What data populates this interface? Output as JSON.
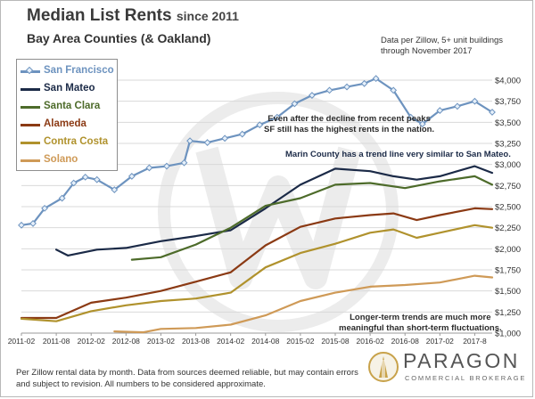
{
  "header": {
    "title_main": "Median List Rents",
    "title_since": "since 2011",
    "subtitle": "Bay Area Counties (& Oakland)",
    "source_line1": "Data per Zillow, 5+ unit buildings",
    "source_line2": "through November 2017"
  },
  "footer": {
    "line1": "Per Zillow rental data by month. Data from sources deemed reliable, but may contain errors",
    "line2": "and subject to revision. All numbers to be considered approximate."
  },
  "logo": {
    "brand": "PARAGON",
    "tagline": "COMMERCIAL BROKERAGE"
  },
  "chart_data": {
    "type": "line",
    "title": "Median List Rents since 2011",
    "subtitle": "Bay Area Counties (& Oakland)",
    "ylim": [
      1000,
      4000
    ],
    "y_ticks": [
      1000,
      1250,
      1500,
      1750,
      2000,
      2250,
      2500,
      2750,
      3000,
      3250,
      3500,
      3750,
      4000
    ],
    "y_tick_labels": [
      "$1,000",
      "$1,250",
      "$1,500",
      "$1,750",
      "$2,000",
      "$2,250",
      "$2,500",
      "$2,750",
      "$3,000",
      "$3,250",
      "$3,500",
      "$3,750",
      "$4,000"
    ],
    "x_ticks": [
      "2011-02",
      "2011-08",
      "2012-02",
      "2012-08",
      "2013-02",
      "2013-08",
      "2014-02",
      "2014-08",
      "2015-02",
      "2015-08",
      "2016-02",
      "2016-08",
      "2017-02",
      "2017-8"
    ],
    "grid": "horizontal",
    "legend_placement": "top-left",
    "series": [
      {
        "name": "San Francisco",
        "color": "#6d93bf",
        "marker": "diamond",
        "points": [
          [
            "2011-02",
            2280
          ],
          [
            "2011-04",
            2300
          ],
          [
            "2011-06",
            2480
          ],
          [
            "2011-09",
            2600
          ],
          [
            "2011-11",
            2780
          ],
          [
            "2012-01",
            2850
          ],
          [
            "2012-03",
            2820
          ],
          [
            "2012-06",
            2700
          ],
          [
            "2012-09",
            2860
          ],
          [
            "2012-12",
            2960
          ],
          [
            "2013-03",
            2980
          ],
          [
            "2013-06",
            3020
          ],
          [
            "2013-07",
            3280
          ],
          [
            "2013-10",
            3260
          ],
          [
            "2014-01",
            3310
          ],
          [
            "2014-04",
            3360
          ],
          [
            "2014-07",
            3470
          ],
          [
            "2014-10",
            3560
          ],
          [
            "2015-01",
            3720
          ],
          [
            "2015-04",
            3820
          ],
          [
            "2015-07",
            3880
          ],
          [
            "2015-10",
            3920
          ],
          [
            "2016-01",
            3960
          ],
          [
            "2016-03",
            4020
          ],
          [
            "2016-06",
            3880
          ],
          [
            "2016-09",
            3560
          ],
          [
            "2016-11",
            3480
          ],
          [
            "2017-02",
            3640
          ],
          [
            "2017-05",
            3690
          ],
          [
            "2017-08",
            3750
          ],
          [
            "2017-11",
            3620
          ]
        ]
      },
      {
        "name": "San Mateo",
        "color": "#1b2a47",
        "points": [
          [
            "2011-08",
            1990
          ],
          [
            "2011-10",
            1920
          ],
          [
            "2012-03",
            1990
          ],
          [
            "2012-08",
            2010
          ],
          [
            "2013-02",
            2090
          ],
          [
            "2013-08",
            2150
          ],
          [
            "2014-02",
            2220
          ],
          [
            "2014-08",
            2480
          ],
          [
            "2015-02",
            2760
          ],
          [
            "2015-08",
            2950
          ],
          [
            "2016-02",
            2920
          ],
          [
            "2016-06",
            2860
          ],
          [
            "2016-10",
            2820
          ],
          [
            "2017-02",
            2860
          ],
          [
            "2017-08",
            2980
          ],
          [
            "2017-11",
            2900
          ]
        ]
      },
      {
        "name": "Santa Clara",
        "color": "#4d6b2a",
        "points": [
          [
            "2012-09",
            1870
          ],
          [
            "2013-02",
            1900
          ],
          [
            "2013-08",
            2050
          ],
          [
            "2014-02",
            2250
          ],
          [
            "2014-08",
            2510
          ],
          [
            "2015-02",
            2600
          ],
          [
            "2015-08",
            2760
          ],
          [
            "2016-02",
            2780
          ],
          [
            "2016-08",
            2720
          ],
          [
            "2017-02",
            2800
          ],
          [
            "2017-08",
            2860
          ],
          [
            "2017-11",
            2760
          ]
        ]
      },
      {
        "name": "Alameda",
        "color": "#8b3a14",
        "points": [
          [
            "2011-02",
            1180
          ],
          [
            "2011-08",
            1180
          ],
          [
            "2012-02",
            1360
          ],
          [
            "2012-08",
            1420
          ],
          [
            "2013-02",
            1500
          ],
          [
            "2013-08",
            1610
          ],
          [
            "2014-02",
            1720
          ],
          [
            "2014-08",
            2040
          ],
          [
            "2015-02",
            2260
          ],
          [
            "2015-08",
            2360
          ],
          [
            "2016-02",
            2400
          ],
          [
            "2016-06",
            2420
          ],
          [
            "2016-10",
            2340
          ],
          [
            "2017-02",
            2400
          ],
          [
            "2017-08",
            2480
          ],
          [
            "2017-11",
            2470
          ]
        ]
      },
      {
        "name": "Contra Costa",
        "color": "#b0922d",
        "points": [
          [
            "2011-02",
            1170
          ],
          [
            "2011-08",
            1140
          ],
          [
            "2012-02",
            1260
          ],
          [
            "2012-08",
            1330
          ],
          [
            "2013-02",
            1380
          ],
          [
            "2013-08",
            1410
          ],
          [
            "2014-02",
            1480
          ],
          [
            "2014-08",
            1780
          ],
          [
            "2015-02",
            1950
          ],
          [
            "2015-08",
            2060
          ],
          [
            "2016-02",
            2190
          ],
          [
            "2016-06",
            2230
          ],
          [
            "2016-10",
            2130
          ],
          [
            "2017-02",
            2190
          ],
          [
            "2017-08",
            2280
          ],
          [
            "2017-11",
            2250
          ]
        ]
      },
      {
        "name": "Solano",
        "color": "#cf9a57",
        "points": [
          [
            "2012-06",
            1020
          ],
          [
            "2012-11",
            1010
          ],
          [
            "2013-02",
            1050
          ],
          [
            "2013-08",
            1060
          ],
          [
            "2014-02",
            1100
          ],
          [
            "2014-08",
            1210
          ],
          [
            "2015-02",
            1380
          ],
          [
            "2015-08",
            1480
          ],
          [
            "2016-02",
            1550
          ],
          [
            "2016-08",
            1570
          ],
          [
            "2017-02",
            1600
          ],
          [
            "2017-08",
            1680
          ],
          [
            "2017-11",
            1660
          ]
        ]
      }
    ],
    "annotations": [
      {
        "lines": [
          "Even after the decline from recent peaks",
          "SF still has the highest rents in the nation."
        ]
      },
      {
        "lines": [
          "Marin County has a trend line very similar to San Mateo."
        ]
      },
      {
        "lines": [
          "Longer-term trends are much more",
          "meaningful than short-term fluctuations."
        ]
      }
    ]
  }
}
